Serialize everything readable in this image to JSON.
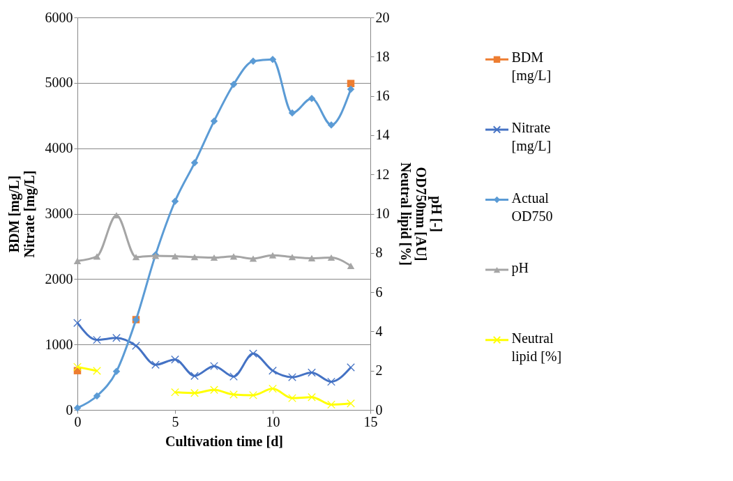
{
  "chart_data": {
    "type": "line",
    "xlabel": "Cultivation time [d]",
    "ylabel": "BDM [mg/L]\nNitrate [mg/L]",
    "y2label": "pH [-]\nOD750nm [AU]\nNeutral lipid [%]",
    "x": [
      0,
      1,
      2,
      3,
      4,
      5,
      6,
      7,
      8,
      9,
      10,
      11,
      12,
      13,
      14
    ],
    "xlim": [
      0,
      15
    ],
    "xticks": [
      0,
      5,
      10,
      15
    ],
    "ylim": [
      0,
      6000
    ],
    "yticks": [
      0,
      1000,
      2000,
      3000,
      4000,
      5000,
      6000
    ],
    "y2lim": [
      0,
      20
    ],
    "y2ticks": [
      0,
      2,
      4,
      6,
      8,
      10,
      12,
      14,
      16,
      18,
      20
    ],
    "grid": "y",
    "legend": "right",
    "series": [
      {
        "name": "BDM [mg/L]",
        "type": "scatter",
        "marker": "square",
        "color": "#ed7d31",
        "values": [
          600,
          null,
          null,
          1380,
          null,
          null,
          null,
          null,
          null,
          null,
          null,
          null,
          null,
          null,
          4990
        ]
      },
      {
        "name": "Nitrate [mg/L]",
        "marker": "cross",
        "color": "#4472c4",
        "values": [
          1330,
          1070,
          1100,
          980,
          690,
          770,
          520,
          670,
          510,
          860,
          600,
          500,
          570,
          430,
          650
        ]
      },
      {
        "name": "Actual OD750",
        "axis": "y2",
        "marker": "diamond",
        "color": "#5b9bd5",
        "values": [
          0.1,
          0.71,
          1.96,
          4.59,
          7.9,
          10.63,
          12.59,
          14.72,
          16.59,
          17.77,
          17.86,
          15.13,
          15.87,
          14.52,
          16.34
        ]
      },
      {
        "name": "pH",
        "axis": "y2",
        "marker": "triangle",
        "color": "#a5a5a5",
        "values": [
          7.59,
          7.82,
          9.92,
          7.79,
          7.85,
          7.83,
          7.79,
          7.76,
          7.82,
          7.71,
          7.88,
          7.79,
          7.73,
          7.76,
          7.34
        ]
      },
      {
        "name": "Neutral lipid [%]",
        "axis": "y2",
        "marker": "cross",
        "color": "#ffff00",
        "values": [
          2.19,
          1.99,
          null,
          null,
          null,
          0.9,
          0.86,
          1.02,
          0.78,
          0.75,
          1.08,
          0.6,
          0.65,
          0.27,
          0.33
        ]
      }
    ]
  }
}
